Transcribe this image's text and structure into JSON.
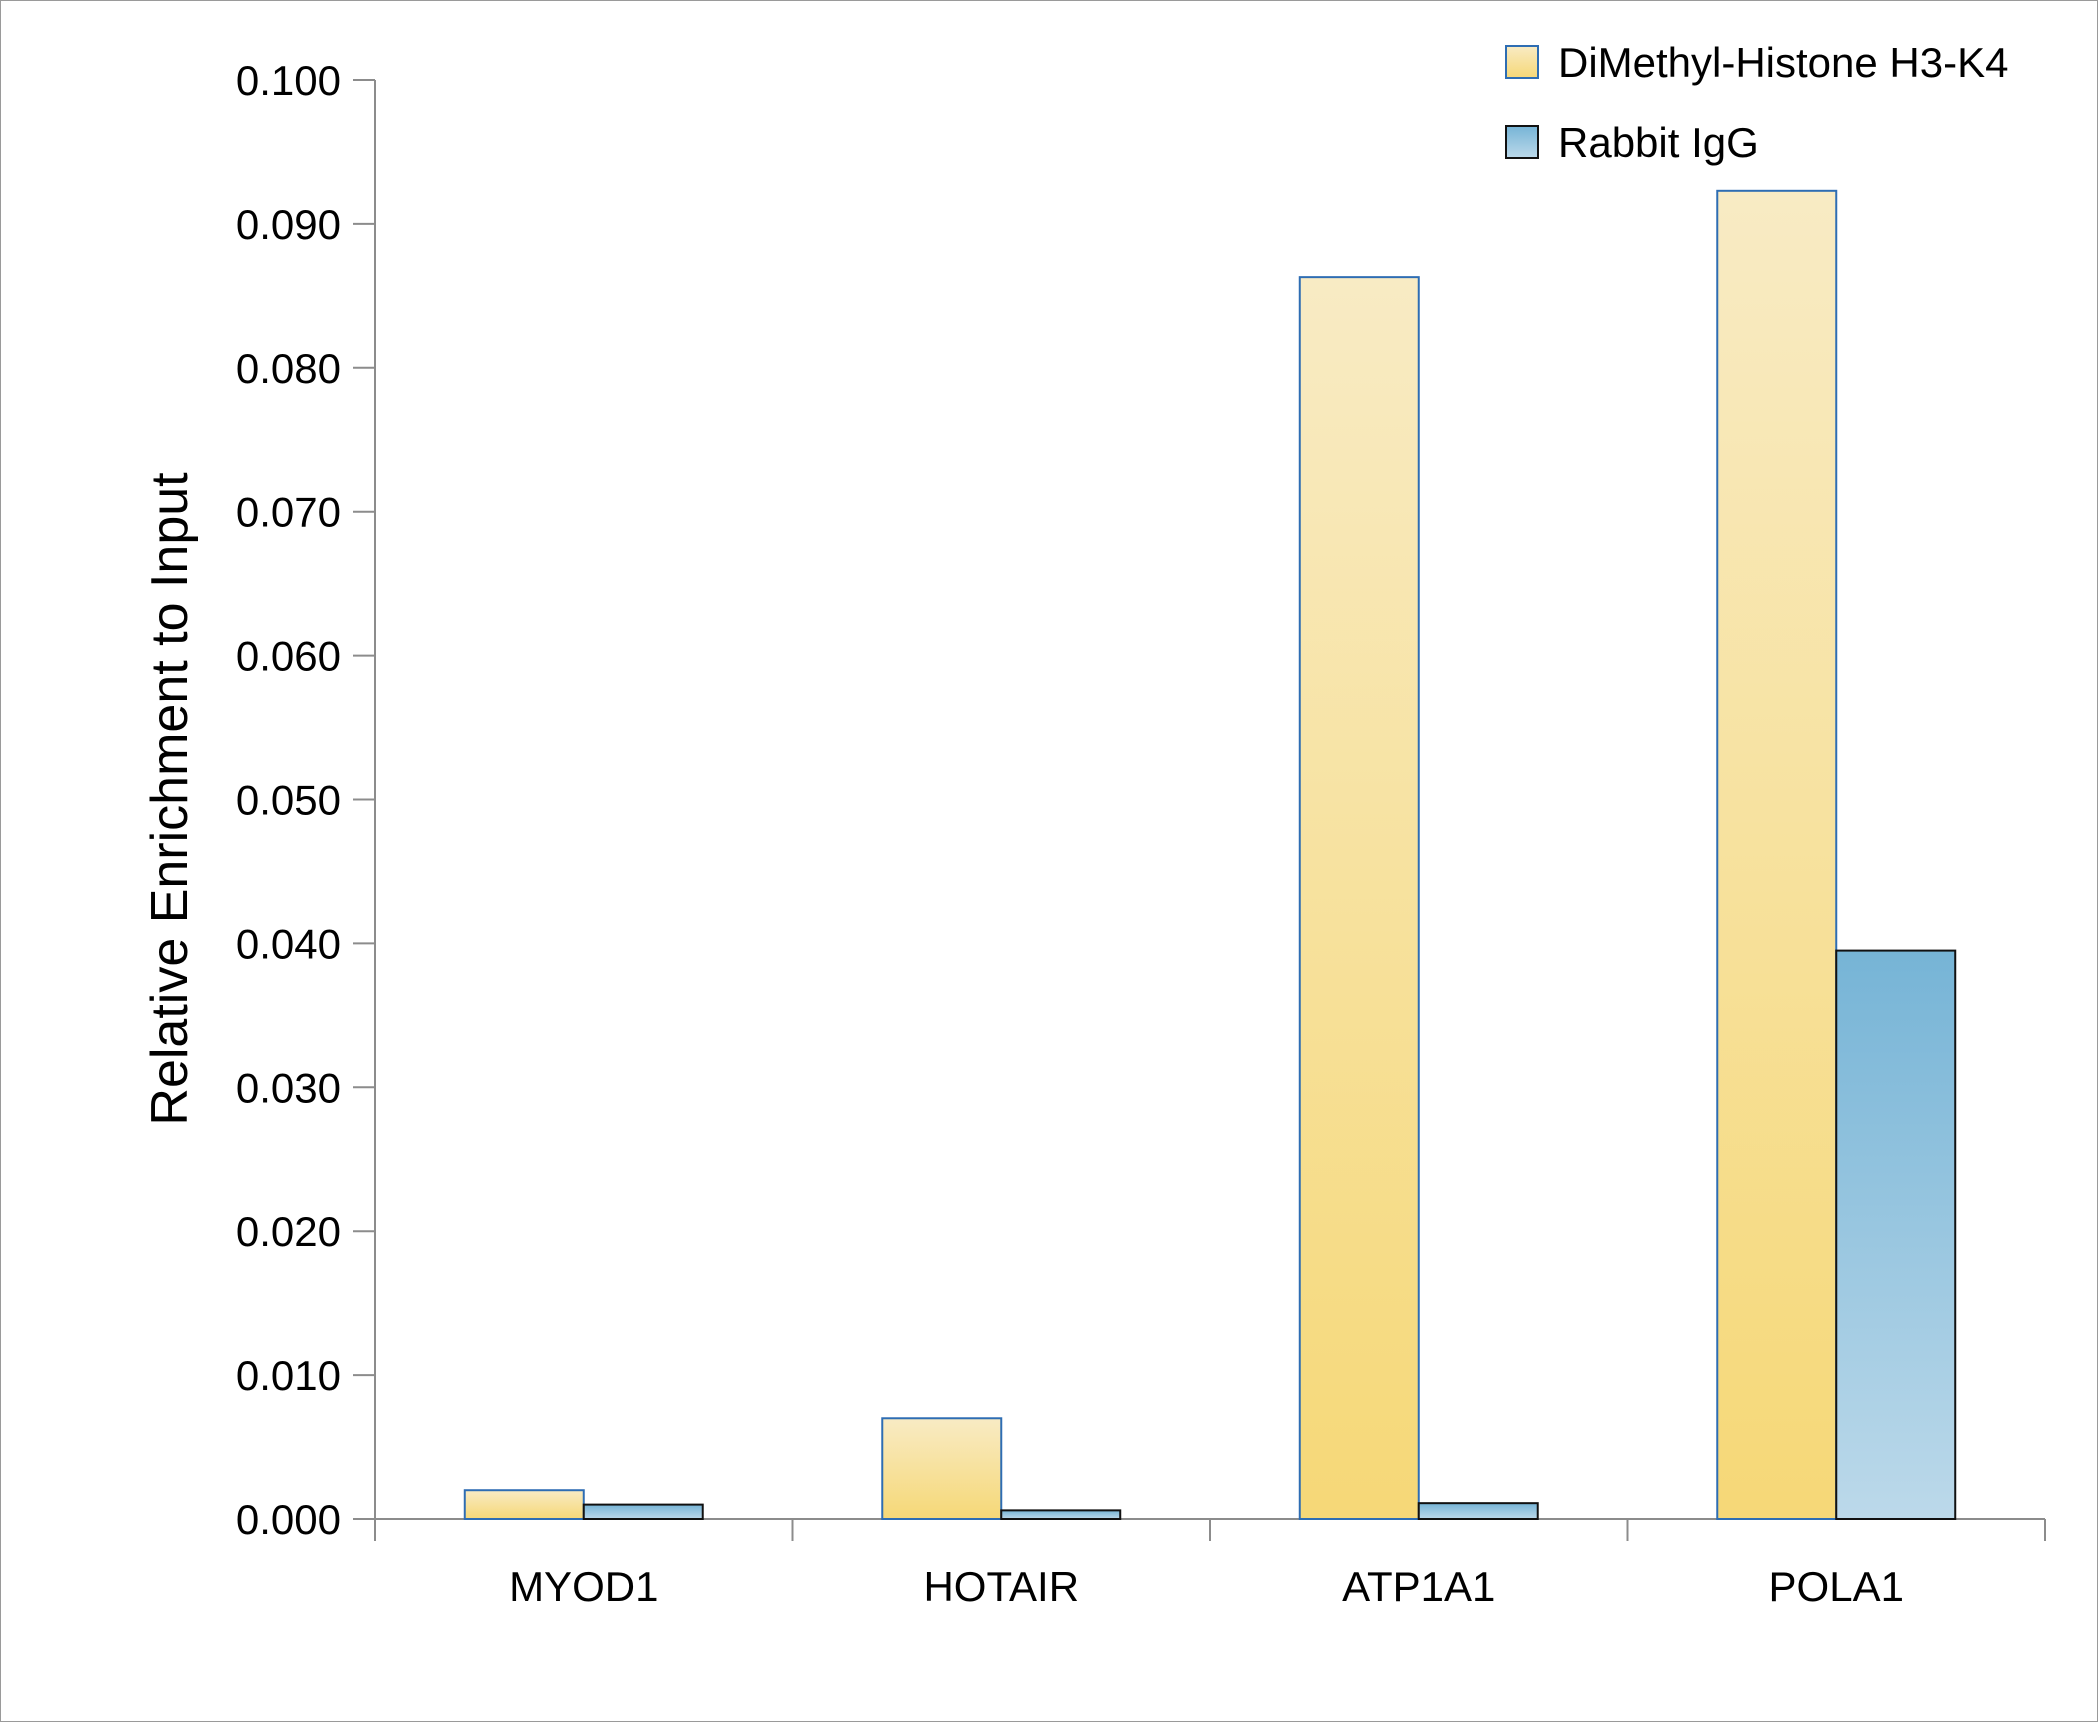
{
  "chart_data": {
    "type": "bar",
    "title": "",
    "xlabel": "",
    "ylabel": "Relative Enrichment to Input",
    "ylim": [
      0,
      0.1
    ],
    "yticks": [
      "0.000",
      "0.010",
      "0.020",
      "0.030",
      "0.040",
      "0.050",
      "0.060",
      "0.070",
      "0.080",
      "0.090",
      "0.100"
    ],
    "categories": [
      "MYOD1",
      "HOTAIR",
      "ATP1A1",
      "POLA1"
    ],
    "series": [
      {
        "name": "DiMethyl-Histone H3-K4",
        "values": [
          0.002,
          0.007,
          0.0863,
          0.0923
        ]
      },
      {
        "name": "Rabbit IgG",
        "values": [
          0.001,
          0.0006,
          0.0011,
          0.0395
        ]
      }
    ],
    "grid": false,
    "legend_position": "top-right",
    "colors": {
      "series_1_top": "#f8ebc4",
      "series_1_bottom": "#f6d877",
      "series_1_edge": "#2e6db3",
      "series_2_top": "#76b4d6",
      "series_2_bottom": "#bcd9ea",
      "series_2_edge": "#111111",
      "axis": "#8c8c8c"
    }
  }
}
